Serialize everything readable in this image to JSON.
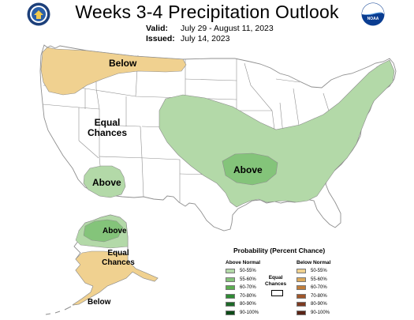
{
  "title": "Weeks 3-4 Precipitation Outlook",
  "valid_label": "Valid:",
  "valid_value": "July 29 - August 11, 2023",
  "issued_label": "Issued:",
  "issued_value": "July 14, 2023",
  "logos": {
    "left_icon": "doc-seal-icon",
    "right_icon": "noaa-logo-icon",
    "right_text": "NOAA"
  },
  "map_labels": {
    "below_nw": "Below",
    "equal_west_1": "Equal",
    "equal_west_2": "Chances",
    "above_sw": "Above",
    "above_south": "Above",
    "above_ak": "Above",
    "equal_ak_1": "Equal",
    "equal_ak_2": "Chances",
    "below_ak": "Below"
  },
  "colors": {
    "above_50_55": "#b3d9a8",
    "above_55_60": "#84c47a",
    "above_60_70": "#5bae4f",
    "above_70_80": "#2e8b34",
    "above_80_90": "#1d6a28",
    "above_90_100": "#0d4b18",
    "below_50_55": "#f0d190",
    "below_55_60": "#dcaa5c",
    "below_60_70": "#c07d3a",
    "below_70_80": "#a0562a",
    "below_80_90": "#7d3a20",
    "below_90_100": "#5a2416",
    "equal": "#ffffff",
    "state_line": "#8f8f8f"
  },
  "legend": {
    "title": "Probability (Percent Chance)",
    "above_header": "Above Normal",
    "below_header": "Below Normal",
    "equal_line1": "Equal",
    "equal_line2": "Chances",
    "above": [
      "50-55%",
      "55-60%",
      "60-70%",
      "70-80%",
      "80-90%",
      "90-100%"
    ],
    "below": [
      "50-55%",
      "55-60%",
      "60-70%",
      "70-80%",
      "80-90%",
      "90-100%"
    ]
  }
}
